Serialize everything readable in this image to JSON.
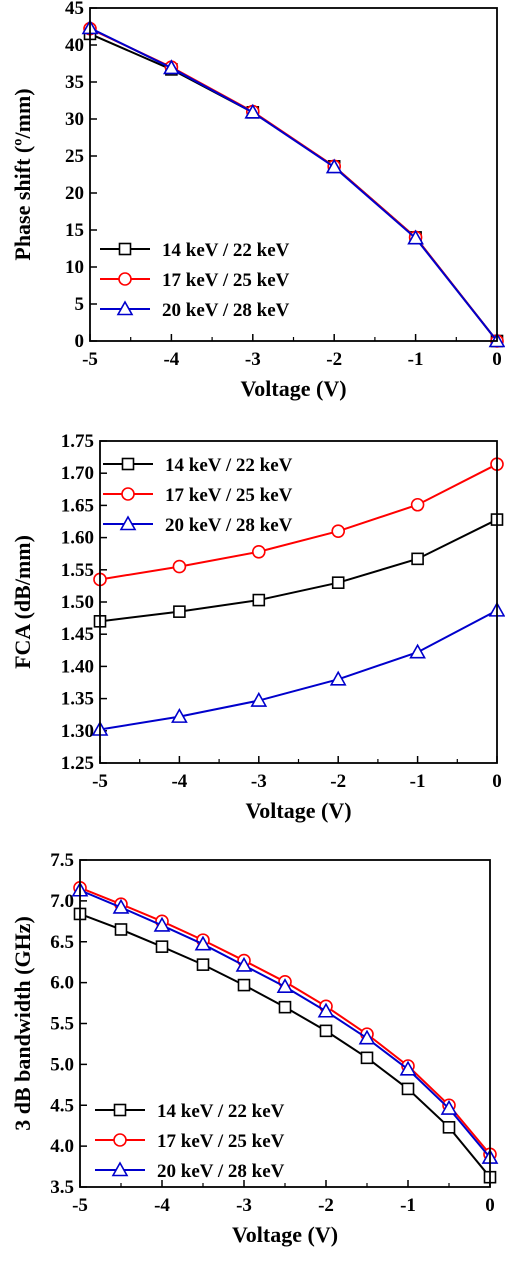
{
  "colors": {
    "s14": "#000000",
    "s17": "#ff0000",
    "s20": "#0000cc"
  },
  "chart_data": [
    {
      "type": "line",
      "xlabel": "Voltage (V)",
      "ylabel": "Phase shift (º/mm)",
      "xlim": [
        -5,
        0
      ],
      "ylim": [
        0,
        45
      ],
      "xticks": [
        "-5",
        "-4",
        "-3",
        "-2",
        "-1",
        "0"
      ],
      "yticks": [
        "0",
        "5",
        "10",
        "15",
        "20",
        "25",
        "30",
        "35",
        "40",
        "45"
      ],
      "x": [
        -5,
        -4,
        -3,
        -2,
        -1,
        0
      ],
      "legend_position": "bottom-left",
      "series": [
        {
          "name": "14 keV / 22 keV",
          "marker": "square",
          "color": "#000000",
          "values": [
            41.5,
            36.7,
            30.9,
            23.6,
            14.0,
            0.0
          ]
        },
        {
          "name": "17 keV / 25 keV",
          "marker": "circle",
          "color": "#ff0000",
          "values": [
            42.2,
            37.0,
            31.0,
            23.6,
            14.0,
            0.0
          ]
        },
        {
          "name": "20 keV / 28 keV",
          "marker": "triangle",
          "color": "#0000cc",
          "values": [
            42.3,
            36.9,
            30.9,
            23.5,
            13.9,
            0.0
          ]
        }
      ]
    },
    {
      "type": "line",
      "xlabel": "Voltage (V)",
      "ylabel": "FCA (dB/mm)",
      "xlim": [
        -5,
        0
      ],
      "ylim": [
        1.25,
        1.75
      ],
      "xticks": [
        "-5",
        "-4",
        "-3",
        "-2",
        "-1",
        "0"
      ],
      "yticks": [
        "1.25",
        "1.30",
        "1.35",
        "1.40",
        "1.45",
        "1.50",
        "1.55",
        "1.60",
        "1.65",
        "1.70",
        "1.75"
      ],
      "x": [
        -5,
        -4,
        -3,
        -2,
        -1,
        0
      ],
      "legend_position": "top-left",
      "series": [
        {
          "name": "14 keV / 22 keV",
          "marker": "square",
          "color": "#000000",
          "values": [
            1.47,
            1.485,
            1.503,
            1.53,
            1.567,
            1.628
          ]
        },
        {
          "name": "17 keV / 25 keV",
          "marker": "circle",
          "color": "#ff0000",
          "values": [
            1.535,
            1.555,
            1.578,
            1.61,
            1.651,
            1.714
          ]
        },
        {
          "name": "20 keV / 28 keV",
          "marker": "triangle",
          "color": "#0000cc",
          "values": [
            1.302,
            1.322,
            1.347,
            1.38,
            1.422,
            1.487
          ]
        }
      ]
    },
    {
      "type": "line",
      "xlabel": "Voltage (V)",
      "ylabel": "3 dB bandwidth (GHz)",
      "xlim": [
        -5,
        0
      ],
      "ylim": [
        3.5,
        7.5
      ],
      "xticks": [
        "-5",
        "-4",
        "-3",
        "-2",
        "-1",
        "0"
      ],
      "yticks": [
        "3.5",
        "4.0",
        "4.5",
        "5.0",
        "5.5",
        "6.0",
        "6.5",
        "7.0",
        "7.5"
      ],
      "x": [
        -5,
        -4.5,
        -4,
        -3.5,
        -3,
        -2.5,
        -2,
        -1.5,
        -1,
        -0.5,
        0
      ],
      "legend_position": "bottom-left",
      "series": [
        {
          "name": "14 keV / 22 keV",
          "marker": "square",
          "color": "#000000",
          "values": [
            6.84,
            6.65,
            6.44,
            6.22,
            5.97,
            5.7,
            5.41,
            5.08,
            4.7,
            4.23,
            3.62
          ]
        },
        {
          "name": "17 keV / 25 keV",
          "marker": "circle",
          "color": "#ff0000",
          "values": [
            7.16,
            6.96,
            6.75,
            6.52,
            6.27,
            6.01,
            5.71,
            5.37,
            4.98,
            4.5,
            3.9
          ]
        },
        {
          "name": "20 keV / 28 keV",
          "marker": "triangle",
          "color": "#0000cc",
          "values": [
            7.13,
            6.92,
            6.7,
            6.47,
            6.21,
            5.95,
            5.65,
            5.32,
            4.94,
            4.46,
            3.86
          ]
        }
      ]
    }
  ]
}
